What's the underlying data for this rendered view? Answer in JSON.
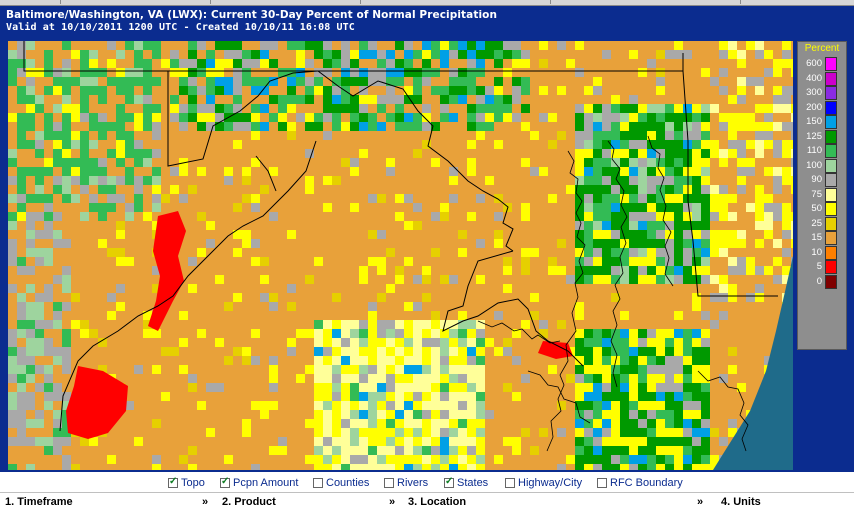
{
  "header": {
    "title": "Baltimore/Washington, VA (LWX): Current 30-Day Percent of Normal Precipitation",
    "valid": "Valid at 10/10/2011 1200 UTC - Created 10/10/11 16:08 UTC"
  },
  "legend": {
    "title": "Percent",
    "entries": [
      {
        "label": "600",
        "color": "#ff00ff"
      },
      {
        "label": "400",
        "color": "#cc00cc"
      },
      {
        "label": "300",
        "color": "#8a2be2"
      },
      {
        "label": "200",
        "color": "#0000ff"
      },
      {
        "label": "150",
        "color": "#00a0e6"
      },
      {
        "label": "125",
        "color": "#009900"
      },
      {
        "label": "110",
        "color": "#33bb55"
      },
      {
        "label": "100",
        "color": "#9ed49e"
      },
      {
        "label": "90",
        "color": "#a9a9a9"
      },
      {
        "label": "75",
        "color": "#ffff99"
      },
      {
        "label": "50",
        "color": "#ffff00"
      },
      {
        "label": "25",
        "color": "#e6d000"
      },
      {
        "label": "15",
        "color": "#e8a13a"
      },
      {
        "label": "10",
        "color": "#ff7f00"
      },
      {
        "label": "5",
        "color": "#ff0000"
      },
      {
        "label": "0",
        "color": "#7f0000"
      }
    ]
  },
  "colors": {
    "header_bg": "#0b2c8f",
    "water": "#1f6b8a"
  },
  "layers": [
    {
      "label": "Topo",
      "checked": true
    },
    {
      "label": "Pcpn Amount",
      "checked": true
    },
    {
      "label": "Counties",
      "checked": false
    },
    {
      "label": "Rivers",
      "checked": false
    },
    {
      "label": "States",
      "checked": true
    },
    {
      "label": "Highway/City",
      "checked": false
    },
    {
      "label": "RFC Boundary",
      "checked": false
    }
  ],
  "nav": [
    {
      "label": "1. Timeframe"
    },
    {
      "label": "2. Product"
    },
    {
      "label": "3. Location"
    },
    {
      "label": "4. Units"
    }
  ],
  "nav_arrow": "»"
}
